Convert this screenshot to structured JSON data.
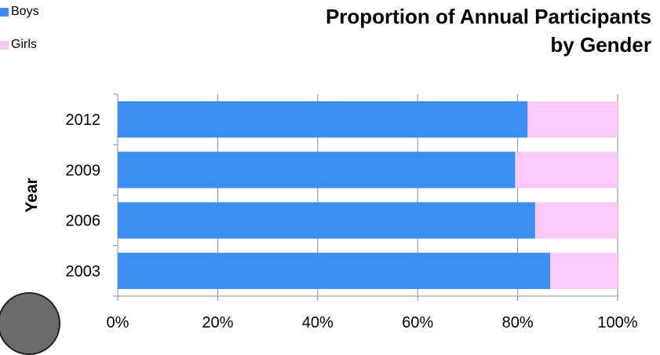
{
  "chart_data": {
    "type": "bar",
    "orientation": "horizontal",
    "stacked": true,
    "title": "Proportion of Annual Participants by Gender",
    "title_lines": [
      "Proportion of Annual Participants",
      "by Gender"
    ],
    "ylabel": "Year",
    "xlabel": "",
    "categories": [
      "2012",
      "2009",
      "2006",
      "2003"
    ],
    "series": [
      {
        "name": "Boys",
        "color": "#3c8ef0",
        "values": [
          82,
          79.5,
          83.5,
          86.5
        ]
      },
      {
        "name": "Girls",
        "color": "#fbc8f7",
        "values": [
          18,
          20.5,
          16.5,
          13.5
        ]
      }
    ],
    "xlim": [
      0,
      100
    ],
    "xticks": [
      "0%",
      "20%",
      "40%",
      "60%",
      "80%",
      "100%"
    ],
    "grid": true,
    "legend_position": "top-left"
  }
}
